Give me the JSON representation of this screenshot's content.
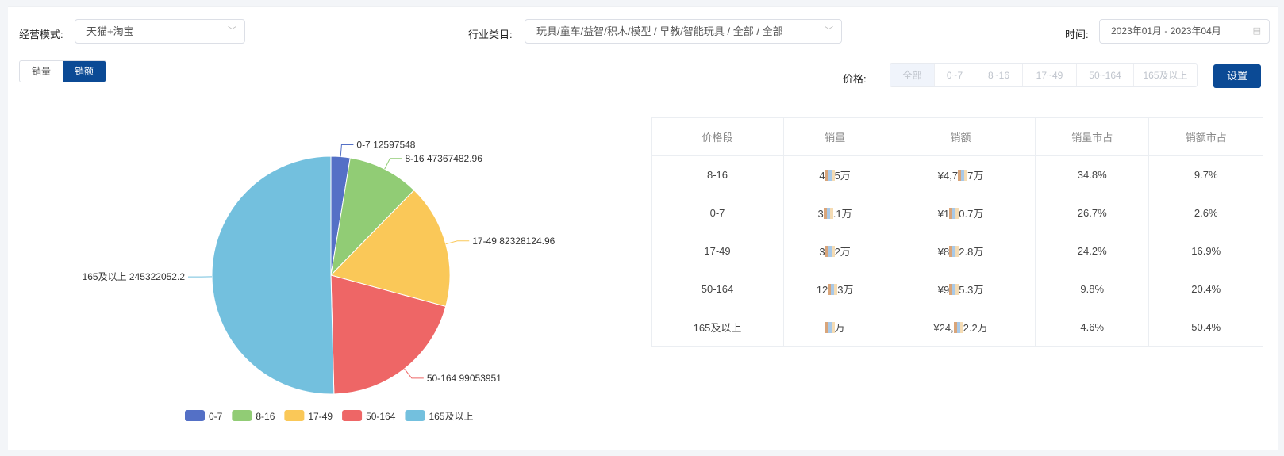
{
  "filters": {
    "mode_label": "经营模式:",
    "mode_value": "天猫+淘宝",
    "category_label": "行业类目:",
    "category_value": "玩具/童车/益智/积木/模型 / 早教/智能玩具 / 全部 / 全部",
    "time_label": "时间:",
    "time_value": "2023年01月 - 2023年04月",
    "price_label": "价格:",
    "price_options": [
      "全部",
      "0~7",
      "8~16",
      "17~49",
      "50~164",
      "165及以上"
    ],
    "price_selected": "全部",
    "settings_button": "设置"
  },
  "metric_toggle": {
    "options": [
      "销量",
      "销额"
    ],
    "selected": "销额"
  },
  "table": {
    "headers": [
      "价格段",
      "销量",
      "销额",
      "销量市占",
      "销额市占"
    ],
    "rows": [
      {
        "segment": "8-16",
        "qty_pre": "4",
        "qty_post": "5万",
        "amt_pre": "¥4,7",
        "amt_post": "7万",
        "qty_share": "34.8%",
        "amt_share": "9.7%"
      },
      {
        "segment": "0-7",
        "qty_pre": "3",
        "qty_post": ".1万",
        "amt_pre": "¥1",
        "amt_post": "0.7万",
        "qty_share": "26.7%",
        "amt_share": "2.6%"
      },
      {
        "segment": "17-49",
        "qty_pre": "3",
        "qty_post": "2万",
        "amt_pre": "¥8",
        "amt_post": "2.8万",
        "qty_share": "24.2%",
        "amt_share": "16.9%"
      },
      {
        "segment": "50-164",
        "qty_pre": "12",
        "qty_post": "3万",
        "amt_pre": "¥9",
        "amt_post": "5.3万",
        "qty_share": "9.8%",
        "amt_share": "20.4%"
      },
      {
        "segment": "165及以上",
        "qty_pre": "",
        "qty_post": "万",
        "amt_pre": "¥24,",
        "amt_post": "2.2万",
        "qty_share": "4.6%",
        "amt_share": "50.4%"
      }
    ]
  },
  "chart_data": {
    "type": "pie",
    "categories": [
      "0-7",
      "8-16",
      "17-49",
      "50-164",
      "165及以上"
    ],
    "values": [
      12597548,
      47367482.96,
      82328124.96,
      99053951,
      245322052.2
    ],
    "colors": [
      "#5470c6",
      "#91cc75",
      "#fac858",
      "#ee6666",
      "#73c0de"
    ],
    "legend_position": "bottom",
    "start": "top, clockwise"
  }
}
